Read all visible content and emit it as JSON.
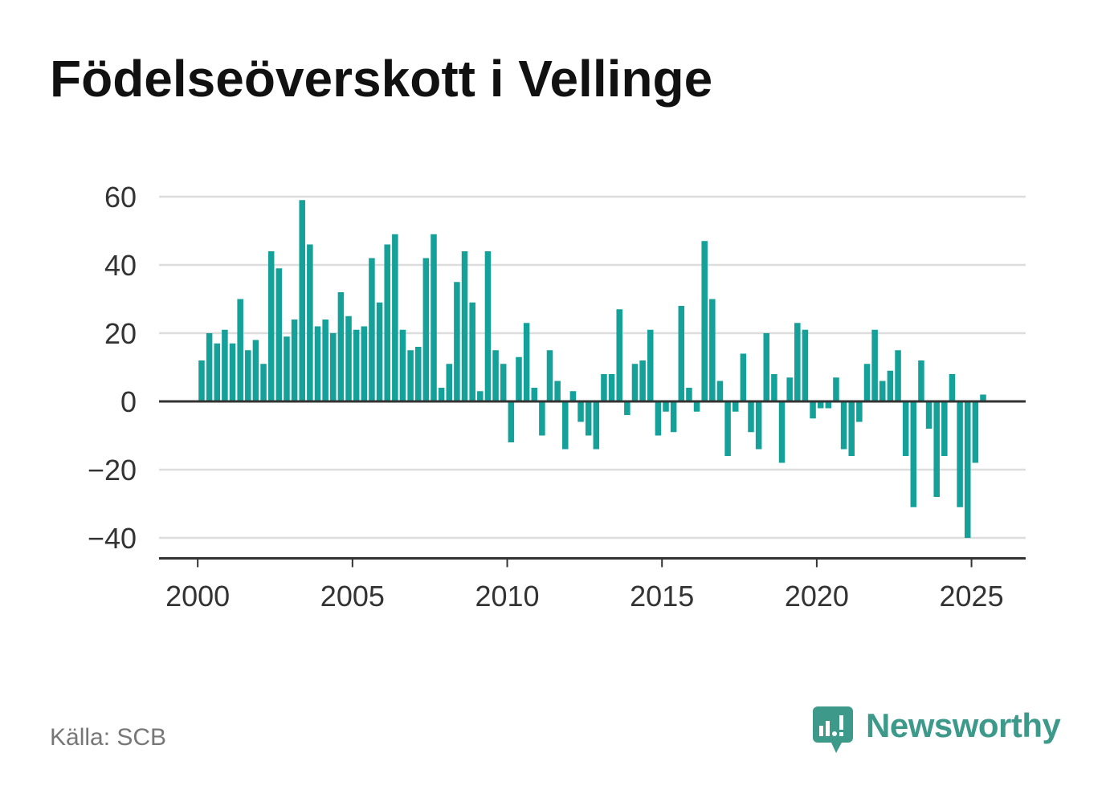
{
  "source": "Källa: SCB",
  "logo": {
    "text": "Newsworthy",
    "icon": "newsworthy-chart-bubble-icon"
  },
  "colors": {
    "background": "#ffffff",
    "title": "#111111",
    "tick_label": "#333333",
    "gridline": "#dddddd",
    "axis": "#333333",
    "bar": "#13a199",
    "source": "#777777",
    "logo": "#3d9a8b"
  },
  "chart_data": {
    "type": "bar",
    "title": "Födelseöverskott i Vellinge",
    "xlabel": "",
    "ylabel": "",
    "x": [
      "2000-Q1",
      "2000-Q2",
      "2000-Q3",
      "2000-Q4",
      "2001-Q1",
      "2001-Q2",
      "2001-Q3",
      "2001-Q4",
      "2002-Q1",
      "2002-Q2",
      "2002-Q3",
      "2002-Q4",
      "2003-Q1",
      "2003-Q2",
      "2003-Q3",
      "2003-Q4",
      "2004-Q1",
      "2004-Q2",
      "2004-Q3",
      "2004-Q4",
      "2005-Q1",
      "2005-Q2",
      "2005-Q3",
      "2005-Q4",
      "2006-Q1",
      "2006-Q2",
      "2006-Q3",
      "2006-Q4",
      "2007-Q1",
      "2007-Q2",
      "2007-Q3",
      "2007-Q4",
      "2008-Q1",
      "2008-Q2",
      "2008-Q3",
      "2008-Q4",
      "2009-Q1",
      "2009-Q2",
      "2009-Q3",
      "2009-Q4",
      "2010-Q1",
      "2010-Q2",
      "2010-Q3",
      "2010-Q4",
      "2011-Q1",
      "2011-Q2",
      "2011-Q3",
      "2011-Q4",
      "2012-Q1",
      "2012-Q2",
      "2012-Q3",
      "2012-Q4",
      "2013-Q1",
      "2013-Q2",
      "2013-Q3",
      "2013-Q4",
      "2014-Q1",
      "2014-Q2",
      "2014-Q3",
      "2014-Q4",
      "2015-Q1",
      "2015-Q2",
      "2015-Q3",
      "2015-Q4",
      "2016-Q1",
      "2016-Q2",
      "2016-Q3",
      "2016-Q4",
      "2017-Q1",
      "2017-Q2",
      "2017-Q3",
      "2017-Q4",
      "2018-Q1",
      "2018-Q2",
      "2018-Q3",
      "2018-Q4",
      "2019-Q1",
      "2019-Q2",
      "2019-Q3",
      "2019-Q4",
      "2020-Q1",
      "2020-Q2",
      "2020-Q3",
      "2020-Q4",
      "2021-Q1",
      "2021-Q2",
      "2021-Q3",
      "2021-Q4",
      "2022-Q1",
      "2022-Q2",
      "2022-Q3",
      "2022-Q4",
      "2023-Q1",
      "2023-Q2",
      "2023-Q3",
      "2023-Q4",
      "2024-Q1",
      "2024-Q2",
      "2024-Q3",
      "2024-Q4",
      "2025-Q1",
      "2025-Q2"
    ],
    "values": [
      12,
      20,
      17,
      21,
      17,
      30,
      15,
      18,
      11,
      44,
      39,
      19,
      24,
      59,
      46,
      22,
      24,
      20,
      32,
      25,
      21,
      22,
      42,
      29,
      46,
      49,
      21,
      15,
      16,
      42,
      49,
      4,
      11,
      35,
      44,
      29,
      3,
      44,
      15,
      11,
      -12,
      13,
      23,
      4,
      -10,
      15,
      6,
      -14,
      3,
      -6,
      -10,
      -14,
      8,
      8,
      27,
      -4,
      11,
      12,
      21,
      -10,
      -3,
      -9,
      28,
      4,
      -3,
      47,
      30,
      6,
      -16,
      -3,
      14,
      -9,
      -14,
      20,
      8,
      -18,
      7,
      23,
      21,
      -5,
      -2,
      -2,
      7,
      -14,
      -16,
      -6,
      11,
      21,
      6,
      9,
      15,
      -16,
      -31,
      12,
      -8,
      -28,
      -16,
      8,
      -31,
      -40,
      -18,
      2
    ],
    "x_ticks": [
      "2000",
      "2005",
      "2010",
      "2015",
      "2020",
      "2025"
    ],
    "y_ticks": [
      "60",
      "40",
      "20",
      "0",
      "−20",
      "−40"
    ],
    "xlim": [
      "1998-10",
      "2026-10"
    ],
    "ylim": [
      -46,
      60
    ],
    "grid": "horizontal",
    "legend": "none"
  }
}
